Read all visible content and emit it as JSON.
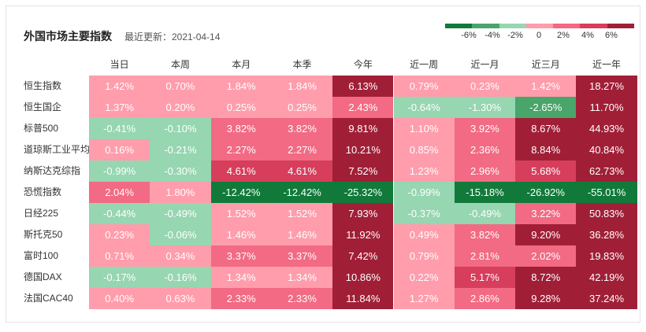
{
  "title": "外国市场主要指数",
  "updated": "最近更新：2021-04-14",
  "legend": {
    "labels": [
      "-6%",
      "-4%",
      "-2%",
      "0",
      "2%",
      "4%",
      "6%"
    ],
    "colors": [
      "#117a3a",
      "#49a56a",
      "#96d6b1",
      "#ff9dac",
      "#f26a83",
      "#d63e5c",
      "#a01f37"
    ]
  },
  "chart_data": {
    "type": "heatmap",
    "columns": [
      "当日",
      "本周",
      "本月",
      "本季",
      "今年",
      "近一周",
      "近一月",
      "近三月",
      "近一年"
    ],
    "rows": [
      {
        "name": "恒生指数",
        "values": [
          1.42,
          0.7,
          1.84,
          1.84,
          6.13,
          0.79,
          0.23,
          1.42,
          18.27
        ]
      },
      {
        "name": "恒生国企",
        "values": [
          1.37,
          0.2,
          0.25,
          0.25,
          2.43,
          -0.64,
          -1.3,
          -2.65,
          11.7
        ]
      },
      {
        "name": "标普500",
        "values": [
          -0.41,
          -0.1,
          3.82,
          3.82,
          9.81,
          1.1,
          3.92,
          8.67,
          44.93
        ]
      },
      {
        "name": "道琼斯工业平均",
        "values": [
          0.16,
          -0.21,
          2.27,
          2.27,
          10.21,
          0.85,
          2.36,
          8.84,
          40.84
        ]
      },
      {
        "name": "纳斯达克综指",
        "values": [
          -0.99,
          -0.3,
          4.61,
          4.61,
          7.52,
          1.23,
          2.96,
          5.68,
          62.73
        ]
      },
      {
        "name": "恐慌指数",
        "values": [
          2.04,
          1.8,
          -12.42,
          -12.42,
          -25.32,
          -0.99,
          -15.18,
          -26.92,
          -55.01
        ]
      },
      {
        "name": "日经225",
        "values": [
          -0.44,
          -0.49,
          1.52,
          1.52,
          7.93,
          -0.37,
          -0.49,
          3.22,
          50.83
        ]
      },
      {
        "name": "斯托克50",
        "values": [
          0.23,
          -0.06,
          1.46,
          1.46,
          11.92,
          0.49,
          3.82,
          9.2,
          36.28
        ]
      },
      {
        "name": "富时100",
        "values": [
          0.71,
          0.34,
          3.37,
          3.37,
          7.42,
          0.79,
          2.81,
          2.02,
          19.83
        ]
      },
      {
        "name": "德国DAX",
        "values": [
          -0.17,
          -0.16,
          1.34,
          1.34,
          10.86,
          0.22,
          5.17,
          8.72,
          42.19
        ]
      },
      {
        "name": "法国CAC40",
        "values": [
          0.4,
          0.63,
          2.33,
          2.33,
          11.84,
          1.27,
          2.86,
          9.28,
          37.24
        ]
      }
    ]
  }
}
